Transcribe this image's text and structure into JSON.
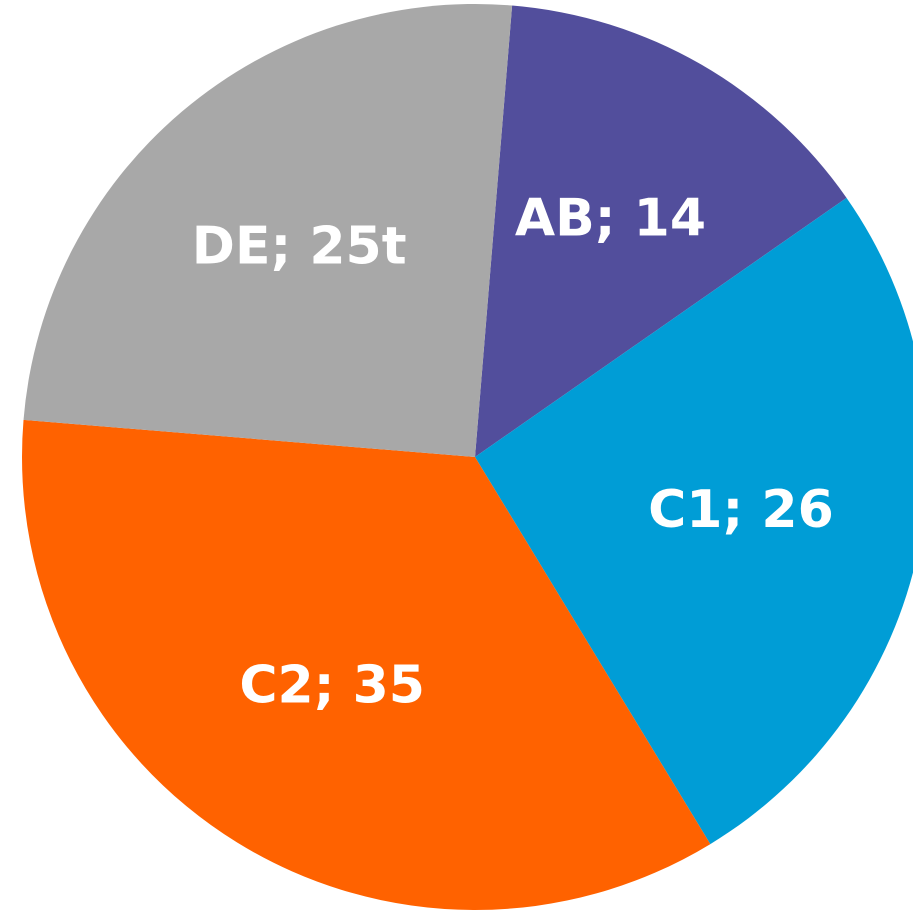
{
  "chart_data": {
    "type": "pie",
    "values": [
      14,
      26,
      35,
      25
    ],
    "value_labels": [
      "AB; 14",
      "C1; 26",
      "C2; 35",
      "DE; 25t"
    ],
    "colors": [
      "#524e9c",
      "#009dd6",
      "#ff6200",
      "#a8a8a8"
    ]
  }
}
